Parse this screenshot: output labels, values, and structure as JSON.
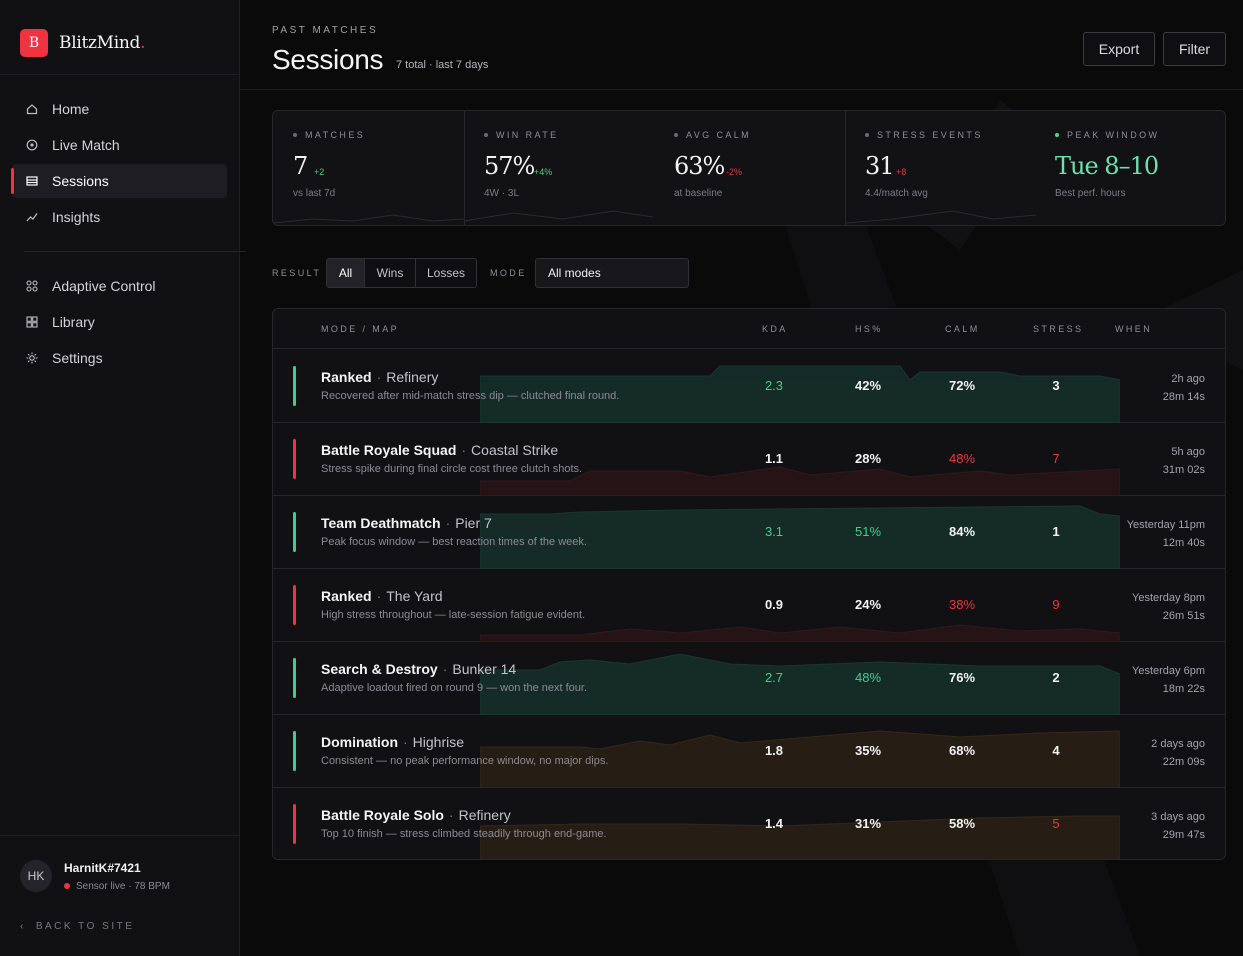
{
  "brand": {
    "initial": "B",
    "name": "BlitzMind",
    "dot": "."
  },
  "nav": {
    "primary": [
      {
        "label": "Home",
        "icon": "home-icon"
      },
      {
        "label": "Live Match",
        "icon": "live-icon"
      },
      {
        "label": "Sessions",
        "icon": "sessions-icon",
        "active": true
      },
      {
        "label": "Insights",
        "icon": "insights-icon"
      }
    ],
    "secondary": [
      {
        "label": "Adaptive Control",
        "icon": "control-icon"
      },
      {
        "label": "Library",
        "icon": "library-icon"
      },
      {
        "label": "Settings",
        "icon": "settings-icon"
      }
    ]
  },
  "user": {
    "initials": "HK",
    "name": "HarnitK#7421",
    "status": "Sensor live · 78 BPM"
  },
  "back_link": "BACK TO SITE",
  "header": {
    "eyebrow": "PAST MATCHES",
    "title": "Sessions",
    "subtitle": "7 total · last 7 days",
    "export_label": "Export",
    "filter_label": "Filter"
  },
  "stats": [
    {
      "label": "MATCHES",
      "value": "7",
      "delta": "+2",
      "delta_dir": "up",
      "note": "vs last 7d"
    },
    {
      "label": "WIN RATE",
      "value": "57%",
      "delta": "+4%",
      "delta_dir": "up",
      "note": "4W · 3L"
    },
    {
      "label": "AVG CALM",
      "value": "63%",
      "delta": "-2%",
      "delta_dir": "down",
      "note": "at baseline"
    },
    {
      "label": "STRESS EVENTS",
      "value": "31",
      "delta": "+8",
      "delta_dir": "down",
      "note": "4.4/match avg"
    },
    {
      "label": "PEAK WINDOW",
      "value": "Tue 8–10",
      "delta": "",
      "delta_dir": "",
      "note": "Best perf. hours"
    }
  ],
  "filters": {
    "result_label": "RESULT",
    "result_options": [
      "All",
      "Wins",
      "Losses"
    ],
    "result_selected": "All",
    "mode_label": "MODE",
    "mode_value": "All modes"
  },
  "table": {
    "headers": {
      "mode_map": "MODE / MAP",
      "kda": "KDA",
      "hs": "HS%",
      "calm": "CALM",
      "stress": "STRESS",
      "when": "WHEN"
    },
    "rows": [
      {
        "result": "win",
        "mode": "Ranked",
        "map": "Refinery",
        "desc": "Recovered after mid-match stress dip — clutched final round.",
        "kda": "2.3",
        "hs": "42%",
        "calm": "72%",
        "stress": "3",
        "when": "2h ago",
        "duration": "28m 14s",
        "tone": "green",
        "kda_tone": "g",
        "hs_tone": "",
        "calm_tone": "",
        "stress_tone": ""
      },
      {
        "result": "loss",
        "mode": "Battle Royale Squad",
        "map": "Coastal Strike",
        "desc": "Stress spike during final circle cost three clutch shots.",
        "kda": "1.1",
        "hs": "28%",
        "calm": "48%",
        "stress": "7",
        "when": "5h ago",
        "duration": "31m 02s",
        "tone": "red",
        "kda_tone": "",
        "hs_tone": "",
        "calm_tone": "r",
        "stress_tone": "r"
      },
      {
        "result": "win",
        "mode": "Team Deathmatch",
        "map": "Pier 7",
        "desc": "Peak focus window — best reaction times of the week.",
        "kda": "3.1",
        "hs": "51%",
        "calm": "84%",
        "stress": "1",
        "when": "Yesterday 11pm",
        "duration": "12m 40s",
        "tone": "green",
        "kda_tone": "g",
        "hs_tone": "g",
        "calm_tone": "",
        "stress_tone": ""
      },
      {
        "result": "loss",
        "mode": "Ranked",
        "map": "The Yard",
        "desc": "High stress throughout — late-session fatigue evident.",
        "kda": "0.9",
        "hs": "24%",
        "calm": "38%",
        "stress": "9",
        "when": "Yesterday 8pm",
        "duration": "26m 51s",
        "tone": "red",
        "kda_tone": "",
        "hs_tone": "",
        "calm_tone": "r",
        "stress_tone": "r"
      },
      {
        "result": "win",
        "mode": "Search & Destroy",
        "map": "Bunker 14",
        "desc": "Adaptive loadout fired on round 9 — won the next four.",
        "kda": "2.7",
        "hs": "48%",
        "calm": "76%",
        "stress": "2",
        "when": "Yesterday 6pm",
        "duration": "18m 22s",
        "tone": "green",
        "kda_tone": "g",
        "hs_tone": "g",
        "calm_tone": "",
        "stress_tone": ""
      },
      {
        "result": "win",
        "mode": "Domination",
        "map": "Highrise",
        "desc": "Consistent — no peak performance window, no major dips.",
        "kda": "1.8",
        "hs": "35%",
        "calm": "68%",
        "stress": "4",
        "when": "2 days ago",
        "duration": "22m 09s",
        "tone": "amber",
        "kda_tone": "",
        "hs_tone": "",
        "calm_tone": "",
        "stress_tone": ""
      },
      {
        "result": "loss",
        "mode": "Battle Royale Solo",
        "map": "Refinery",
        "desc": "Top 10 finish — stress climbed steadily through end-game.",
        "kda": "1.4",
        "hs": "31%",
        "calm": "58%",
        "stress": "5",
        "when": "3 days ago",
        "duration": "29m 47s",
        "tone": "amber",
        "kda_tone": "",
        "hs_tone": "",
        "calm_tone": "",
        "stress_tone": "r"
      }
    ]
  },
  "colors": {
    "accent": "#ef3340",
    "win": "#3ecf8e",
    "loss": "#ef3340",
    "peak": "#6ee0b0"
  }
}
